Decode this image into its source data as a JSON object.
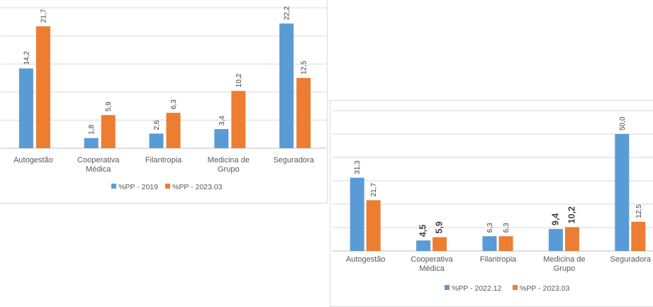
{
  "colors": {
    "series1": "#5b9bd5",
    "series2": "#ed7d31",
    "grid": "#d9d9d9",
    "axis": "#d9d9d9",
    "text": "#595959"
  },
  "chart_data": [
    {
      "type": "bar",
      "categories": [
        "Autogestão",
        "Cooperativa Médica",
        "Filantropia",
        "Medicina de Grupo",
        "Seguradora"
      ],
      "category_lines": [
        [
          "Autogestão"
        ],
        [
          "Cooperativa",
          "Médica"
        ],
        [
          "Filantropia"
        ],
        [
          "Medicina de",
          "Grupo"
        ],
        [
          "Seguradora"
        ]
      ],
      "series": [
        {
          "name": "%PP - 2019",
          "values": [
            14.2,
            1.8,
            2.6,
            3.4,
            22.2
          ],
          "labels": [
            "14,2",
            "1,8",
            "2,6",
            "3,4",
            "22,2"
          ]
        },
        {
          "name": "%PP - 2023.03",
          "values": [
            21.7,
            5.9,
            6.3,
            10.2,
            12.5
          ],
          "labels": [
            "21,7",
            "5,9",
            "6,3",
            "10,2",
            "12,5"
          ]
        }
      ],
      "ylim": [
        0,
        25
      ],
      "grid_step": 5,
      "grid": true,
      "legend": "bottom",
      "data_labels": "rotated",
      "bold_categories": []
    },
    {
      "type": "bar",
      "categories": [
        "Autogestão",
        "Cooperativa Médica",
        "Filantropia",
        "Medicina de Grupo",
        "Seguradora"
      ],
      "category_lines": [
        [
          "Autogestão"
        ],
        [
          "Cooperativa",
          "Médica"
        ],
        [
          "Filantropia"
        ],
        [
          "Medicina de",
          "Grupo"
        ],
        [
          "Seguradora"
        ]
      ],
      "series": [
        {
          "name": "%PP - 2022.12",
          "values": [
            31.3,
            4.5,
            6.3,
            9.4,
            50.0
          ],
          "labels": [
            "31,3",
            "4,5",
            "6,3",
            "9,4",
            "50,0"
          ]
        },
        {
          "name": "%PP - 2023.03",
          "values": [
            21.7,
            5.9,
            6.3,
            10.2,
            12.5
          ],
          "labels": [
            "21,7",
            "5,9",
            "6,3",
            "10,2",
            "12,5"
          ]
        }
      ],
      "ylim": [
        0,
        60
      ],
      "grid_step": 10,
      "grid": true,
      "legend": "bottom",
      "data_labels": "rotated",
      "bold_categories": [
        1,
        3
      ]
    }
  ]
}
